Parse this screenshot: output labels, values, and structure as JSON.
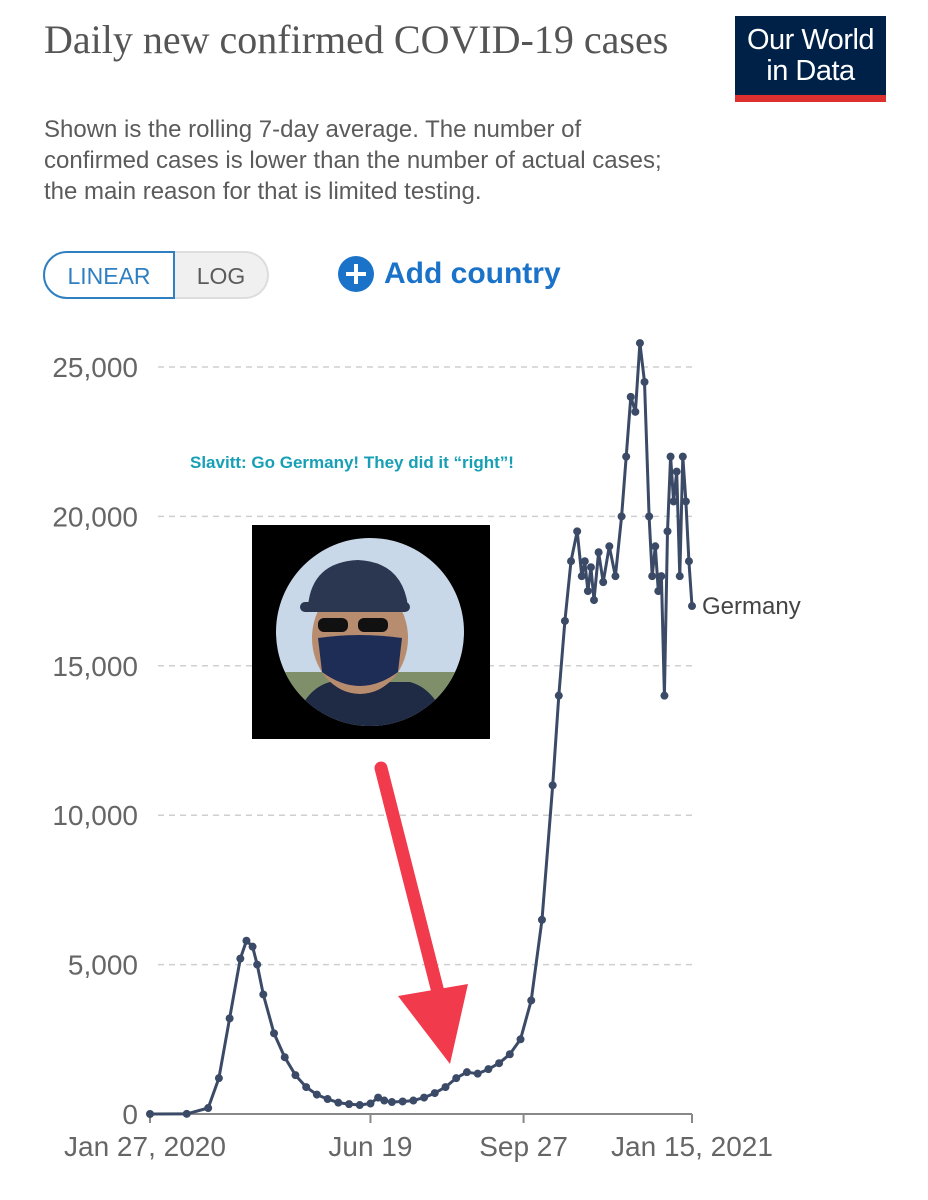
{
  "header": {
    "title": "Daily new confirmed COVID-19 cases",
    "subtitle": "Shown is the rolling 7-day average. The number of confirmed cases is lower than the number of actual cases; the main reason for that is limited testing.",
    "logo_line1": "Our World",
    "logo_line2": "in Data",
    "logo_color": "#002147",
    "logo_accent": "#dc2f2f"
  },
  "controls": {
    "linear_label": "LINEAR",
    "log_label": "LOG",
    "add_country_label": "Add country",
    "add_icon": "plus-circle-icon",
    "accent": "#1a73c9"
  },
  "annotation": {
    "text": "Slavitt: Go Germany! They did it “right”!",
    "photo_icon": "person-with-mask-photo",
    "arrow_color": "#f23a4d"
  },
  "chart_data": {
    "type": "line",
    "title": "Daily new confirmed COVID-19 cases",
    "subtitle": "Shown is the rolling 7-day average. The number of confirmed cases is lower than the number of actual cases; the main reason for that is limited testing.",
    "xlabel": "",
    "ylabel": "",
    "ylim": [
      0,
      25000
    ],
    "yticks": [
      0,
      5000,
      10000,
      15000,
      20000,
      25000
    ],
    "ytick_labels": [
      "0",
      "5,000",
      "10,000",
      "15,000",
      "20,000",
      "25,000"
    ],
    "xlim": [
      "2020-01-27",
      "2021-01-15"
    ],
    "xticks": [
      "2020-01-27",
      "2020-06-19",
      "2020-09-27",
      "2021-01-15"
    ],
    "xtick_labels": [
      "Jan 27, 2020",
      "Jun 19",
      "Sep 27",
      "Jan 15, 2021"
    ],
    "grid": "horizontal dashed",
    "series": [
      {
        "name": "Germany",
        "color": "#3b4a66",
        "x": [
          "2020-01-27",
          "2020-02-20",
          "2020-03-05",
          "2020-03-12",
          "2020-03-19",
          "2020-03-26",
          "2020-03-30",
          "2020-04-03",
          "2020-04-06",
          "2020-04-10",
          "2020-04-17",
          "2020-04-24",
          "2020-05-01",
          "2020-05-08",
          "2020-05-15",
          "2020-05-22",
          "2020-05-29",
          "2020-06-05",
          "2020-06-12",
          "2020-06-19",
          "2020-06-24",
          "2020-06-28",
          "2020-07-03",
          "2020-07-10",
          "2020-07-17",
          "2020-07-24",
          "2020-07-31",
          "2020-08-07",
          "2020-08-14",
          "2020-08-21",
          "2020-08-28",
          "2020-09-04",
          "2020-09-11",
          "2020-09-18",
          "2020-09-25",
          "2020-10-02",
          "2020-10-09",
          "2020-10-16",
          "2020-10-20",
          "2020-10-24",
          "2020-10-28",
          "2020-11-01",
          "2020-11-04",
          "2020-11-06",
          "2020-11-08",
          "2020-11-10",
          "2020-11-12",
          "2020-11-15",
          "2020-11-18",
          "2020-11-22",
          "2020-11-26",
          "2020-11-30",
          "2020-12-03",
          "2020-12-06",
          "2020-12-09",
          "2020-12-12",
          "2020-12-15",
          "2020-12-18",
          "2020-12-20",
          "2020-12-22",
          "2020-12-24",
          "2020-12-26",
          "2020-12-28",
          "2020-12-30",
          "2021-01-01",
          "2021-01-03",
          "2021-01-05",
          "2021-01-07",
          "2021-01-09",
          "2021-01-11",
          "2021-01-13",
          "2021-01-15"
        ],
        "values": [
          0,
          5,
          200,
          1200,
          3200,
          5200,
          5800,
          5600,
          5000,
          4000,
          2700,
          1900,
          1300,
          900,
          650,
          500,
          380,
          330,
          300,
          350,
          550,
          450,
          400,
          420,
          450,
          550,
          700,
          900,
          1200,
          1400,
          1350,
          1500,
          1700,
          2000,
          2500,
          3800,
          6500,
          11000,
          14000,
          16500,
          18500,
          19500,
          18000,
          18500,
          17500,
          18300,
          17200,
          18800,
          17800,
          19000,
          18000,
          20000,
          22000,
          24000,
          23500,
          25800,
          24500,
          20000,
          18000,
          19000,
          17500,
          18000,
          14000,
          19500,
          22000,
          20500,
          21500,
          18000,
          22000,
          20500,
          18500,
          17000
        ]
      }
    ]
  }
}
